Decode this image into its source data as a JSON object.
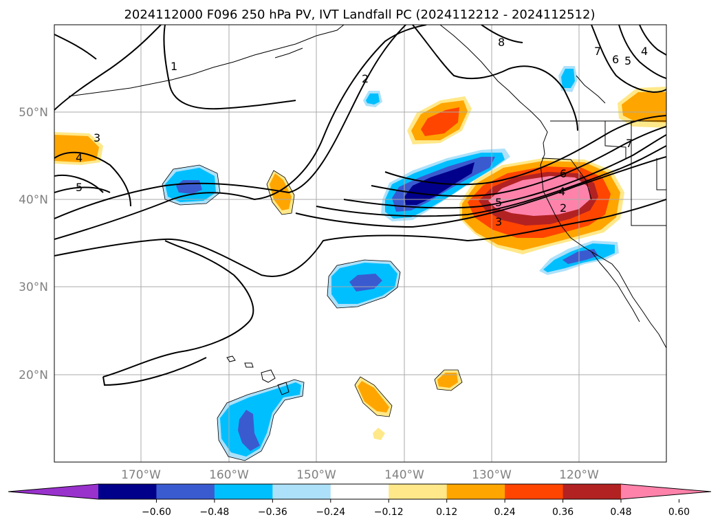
{
  "title": "2024112000 F096 250 hPa PV, IVT Landfall PC (2024112212 - 2024112512)",
  "lat_labels": [
    "50°N",
    "40°N",
    "30°N",
    "20°N"
  ],
  "lon_labels": [
    "170°W",
    "160°W",
    "150°W",
    "140°W",
    "130°W",
    "120°W"
  ],
  "colorbar": {
    "ticks": [
      "−0.60",
      "−0.48",
      "−0.36",
      "−0.24",
      "−0.12",
      "0.12",
      "0.24",
      "0.36",
      "0.48",
      "0.60"
    ],
    "colors": [
      "#9932CC",
      "#00008B",
      "#3A5BD0",
      "#00BFFF",
      "#ADE1FA",
      "#FFFFFF",
      "#FFE88A",
      "#FFA500",
      "#FF4500",
      "#B22222",
      "#FF82AB"
    ]
  },
  "contour_labels": [
    "1",
    "2",
    "8",
    "7",
    "6",
    "5",
    "4",
    "3",
    "4",
    "5",
    "7",
    "6",
    "4",
    "5",
    "2",
    "3"
  ]
}
